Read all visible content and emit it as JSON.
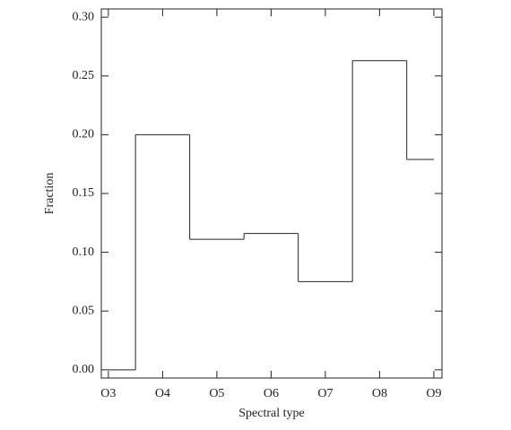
{
  "chart_data": {
    "type": "step",
    "xlabel": "Spectral type",
    "ylabel": "Fraction",
    "categories": [
      "O3",
      "O4",
      "O5",
      "O6",
      "O7",
      "O8",
      "O9"
    ],
    "values": [
      0.0,
      0.2,
      0.111,
      0.116,
      0.075,
      0.263,
      0.179
    ],
    "color": "#000000",
    "ylim": [
      -0.007,
      0.307
    ],
    "yticks": [
      {
        "value": 0,
        "label": "0.00"
      },
      {
        "value": 0.05,
        "label": "0.05"
      },
      {
        "value": 0.1,
        "label": "0.10"
      },
      {
        "value": 0.15,
        "label": "0.15"
      },
      {
        "value": 0.2,
        "label": "0.20"
      },
      {
        "value": 0.25,
        "label": "0.25"
      },
      {
        "value": 0.3,
        "label": "0.30"
      }
    ]
  }
}
